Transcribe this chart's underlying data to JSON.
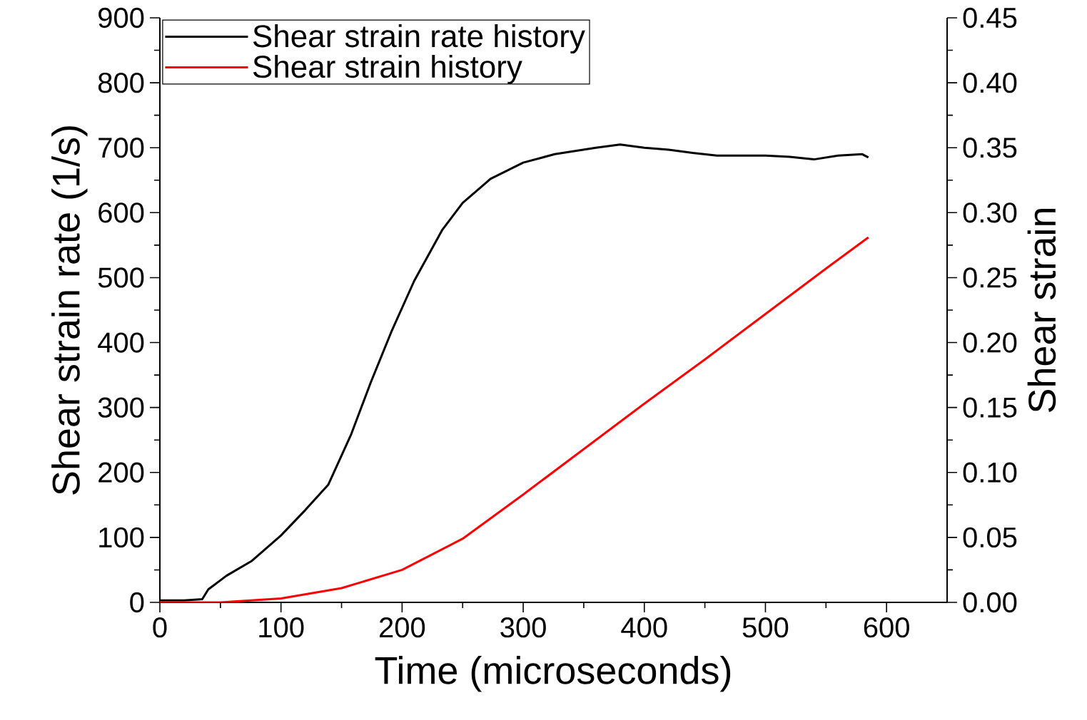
{
  "chart_data": {
    "type": "line",
    "xlabel": "Time (microseconds)",
    "ylabel": "Shear strain rate (1/s)",
    "y2label": "Shear strain",
    "xlim": [
      0,
      650
    ],
    "xticks": [
      0,
      {
        "value": 50,
        "label": null
      },
      100,
      {
        "value": 150,
        "label": null
      },
      200,
      {
        "value": 250,
        "label": null
      },
      300,
      {
        "value": 350,
        "label": null
      },
      400,
      {
        "value": 450,
        "label": null
      },
      500,
      {
        "value": 550,
        "label": null
      },
      600
    ],
    "ylim": [
      0,
      900
    ],
    "yticks": [
      0,
      {
        "value": 50,
        "label": null
      },
      100,
      {
        "value": 150,
        "label": null
      },
      200,
      {
        "value": 250,
        "label": null
      },
      300,
      {
        "value": 350,
        "label": null
      },
      400,
      {
        "value": 450,
        "label": null
      },
      500,
      {
        "value": 550,
        "label": null
      },
      600,
      {
        "value": 650,
        "label": null
      },
      700,
      {
        "value": 750,
        "label": null
      },
      800,
      {
        "value": 850,
        "label": null
      },
      900
    ],
    "y2lim": [
      0,
      0.45
    ],
    "y2ticks": [
      {
        "value": 0,
        "label": "0.00"
      },
      {
        "value": 0.025,
        "label": null
      },
      0.05,
      {
        "value": 0.075,
        "label": null
      },
      {
        "value": 0.1,
        "label": "0.10"
      },
      {
        "value": 0.125,
        "label": null
      },
      0.15,
      {
        "value": 0.175,
        "label": null
      },
      {
        "value": 0.2,
        "label": "0.20"
      },
      {
        "value": 0.225,
        "label": null
      },
      0.25,
      {
        "value": 0.275,
        "label": null
      },
      {
        "value": 0.3,
        "label": "0.30"
      },
      {
        "value": 0.325,
        "label": null
      },
      0.35,
      {
        "value": 0.375,
        "label": null
      },
      {
        "value": 0.4,
        "label": "0.40"
      },
      {
        "value": 0.425,
        "label": null
      },
      0.45
    ],
    "legend": "top left",
    "line_style": "solid",
    "marker": "none",
    "series": [
      {
        "name": "Shear strain rate history",
        "color": "#000000",
        "x": [
          0,
          20,
          35,
          40,
          55,
          76,
          100,
          120,
          139,
          158,
          174,
          191,
          210,
          233,
          250,
          273,
          300,
          326,
          360,
          380,
          400,
          420,
          440,
          460,
          480,
          500,
          520,
          540,
          560,
          580,
          585
        ],
        "values": [
          3,
          3,
          5,
          20,
          41,
          64,
          103,
          142,
          181,
          259,
          338,
          416,
          495,
          573,
          615,
          652,
          677,
          690,
          700,
          705,
          700,
          697,
          692,
          688,
          688,
          688,
          686,
          682,
          688,
          690,
          685
        ]
      },
      {
        "name": "Shear strain history",
        "color": "#ff0000",
        "axis": "y2",
        "x": [
          0,
          50,
          100,
          150,
          200,
          250,
          300,
          350,
          400,
          450,
          500,
          550,
          585
        ],
        "values": [
          0,
          0,
          0.003,
          0.011,
          0.025,
          0.049,
          0.083,
          0.118,
          0.153,
          0.187,
          0.222,
          0.257,
          0.281
        ]
      }
    ]
  }
}
